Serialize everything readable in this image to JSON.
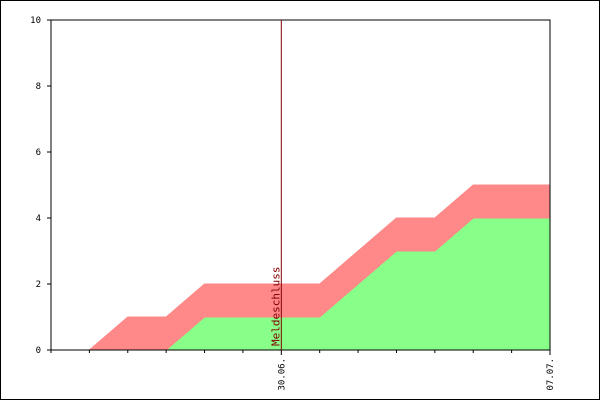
{
  "chart_data": {
    "type": "stacked_area",
    "categories": [
      null,
      null,
      null,
      null,
      null,
      null,
      "30.06.",
      null,
      null,
      null,
      null,
      null,
      null,
      "07.07."
    ],
    "series": [
      {
        "color": "#88ff88",
        "values": [
          0,
          0,
          0,
          0,
          1,
          1,
          1,
          1,
          2,
          3,
          3,
          4,
          4,
          4
        ]
      },
      {
        "color": "#ff8888",
        "values": [
          0,
          0,
          1,
          1,
          1,
          1,
          1,
          1,
          1,
          1,
          1,
          1,
          1,
          1
        ]
      }
    ],
    "ylim": [
      0,
      10
    ],
    "yticks": [
      0,
      2,
      4,
      6,
      8,
      10
    ],
    "annotation": {
      "text": "Meldeschluss",
      "category": "30.06.",
      "color": "#800000"
    }
  }
}
